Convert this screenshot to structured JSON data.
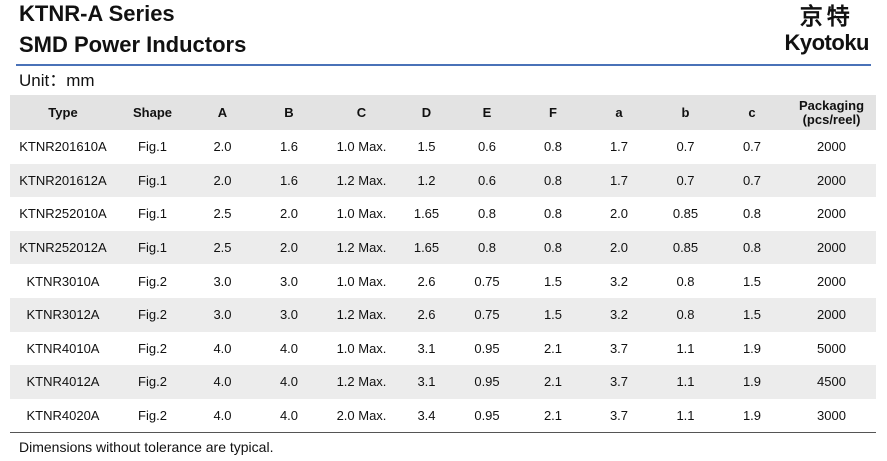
{
  "header": {
    "title_line1": "KTNR-A Series",
    "title_line2": "SMD Power Inductors",
    "logo_cn": "京特",
    "logo_en": "Kyotoku",
    "accent_color": "#4a72b8"
  },
  "unit_label": "Unit：mm",
  "table": {
    "headers": [
      "Type",
      "Shape",
      "A",
      "B",
      "C",
      "D",
      "E",
      "F",
      "a",
      "b",
      "c",
      "Packaging\n(pcs/reel)"
    ],
    "rows": [
      [
        "KTNR201610A",
        "Fig.1",
        "2.0",
        "1.6",
        "1.0 Max.",
        "1.5",
        "0.6",
        "0.8",
        "1.7",
        "0.7",
        "0.7",
        "2000"
      ],
      [
        "KTNR201612A",
        "Fig.1",
        "2.0",
        "1.6",
        "1.2 Max.",
        "1.2",
        "0.6",
        "0.8",
        "1.7",
        "0.7",
        "0.7",
        "2000"
      ],
      [
        "KTNR252010A",
        "Fig.1",
        "2.5",
        "2.0",
        "1.0 Max.",
        "1.65",
        "0.8",
        "0.8",
        "2.0",
        "0.85",
        "0.8",
        "2000"
      ],
      [
        "KTNR252012A",
        "Fig.1",
        "2.5",
        "2.0",
        "1.2 Max.",
        "1.65",
        "0.8",
        "0.8",
        "2.0",
        "0.85",
        "0.8",
        "2000"
      ],
      [
        "KTNR3010A",
        "Fig.2",
        "3.0",
        "3.0",
        "1.0 Max.",
        "2.6",
        "0.75",
        "1.5",
        "3.2",
        "0.8",
        "1.5",
        "2000"
      ],
      [
        "KTNR3012A",
        "Fig.2",
        "3.0",
        "3.0",
        "1.2 Max.",
        "2.6",
        "0.75",
        "1.5",
        "3.2",
        "0.8",
        "1.5",
        "2000"
      ],
      [
        "KTNR4010A",
        "Fig.2",
        "4.0",
        "4.0",
        "1.0 Max.",
        "3.1",
        "0.95",
        "2.1",
        "3.7",
        "1.1",
        "1.9",
        "5000"
      ],
      [
        "KTNR4012A",
        "Fig.2",
        "4.0",
        "4.0",
        "1.2 Max.",
        "3.1",
        "0.95",
        "2.1",
        "3.7",
        "1.1",
        "1.9",
        "4500"
      ],
      [
        "KTNR4020A",
        "Fig.2",
        "4.0",
        "4.0",
        "2.0 Max.",
        "3.4",
        "0.95",
        "2.1",
        "3.7",
        "1.1",
        "1.9",
        "3000"
      ]
    ]
  },
  "footnote": "Dimensions without tolerance are typical."
}
